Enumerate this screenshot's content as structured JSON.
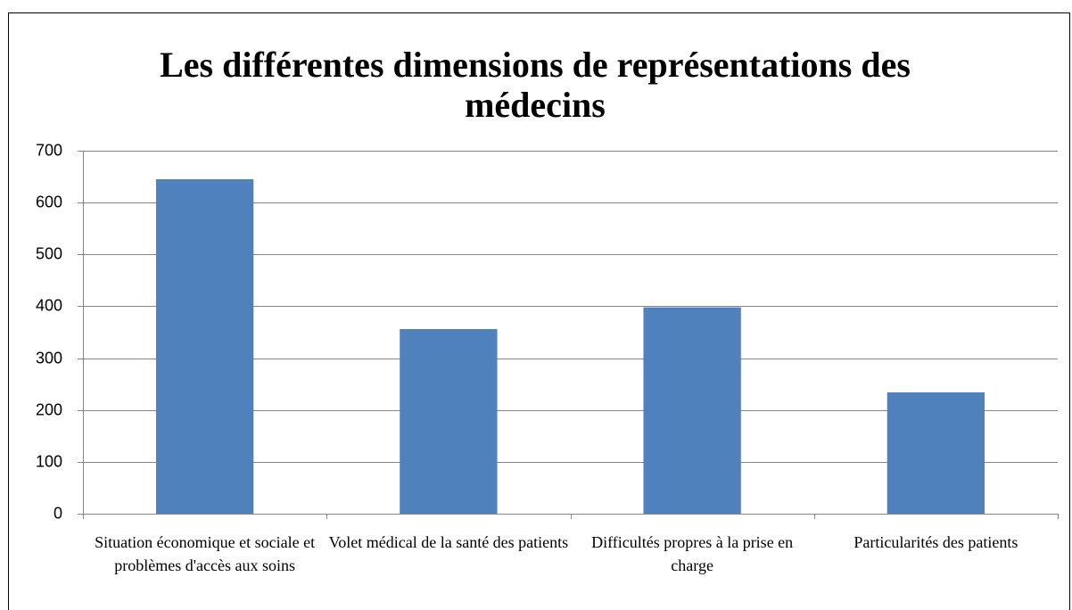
{
  "chart_data": {
    "type": "bar",
    "title": "Les différentes dimensions de représentations des médecins",
    "categories": [
      "Situation économique et sociale et problèmes d'accès aux soins",
      "Volet médical de la santé des patients",
      "Difficultés propres à la prise en charge",
      "Particularités des patients"
    ],
    "values": [
      645,
      356,
      398,
      234
    ],
    "color": "#4f81bd",
    "ylim": [
      0,
      700
    ],
    "yticks": [
      0,
      100,
      200,
      300,
      400,
      500,
      600,
      700
    ],
    "grid": true
  }
}
